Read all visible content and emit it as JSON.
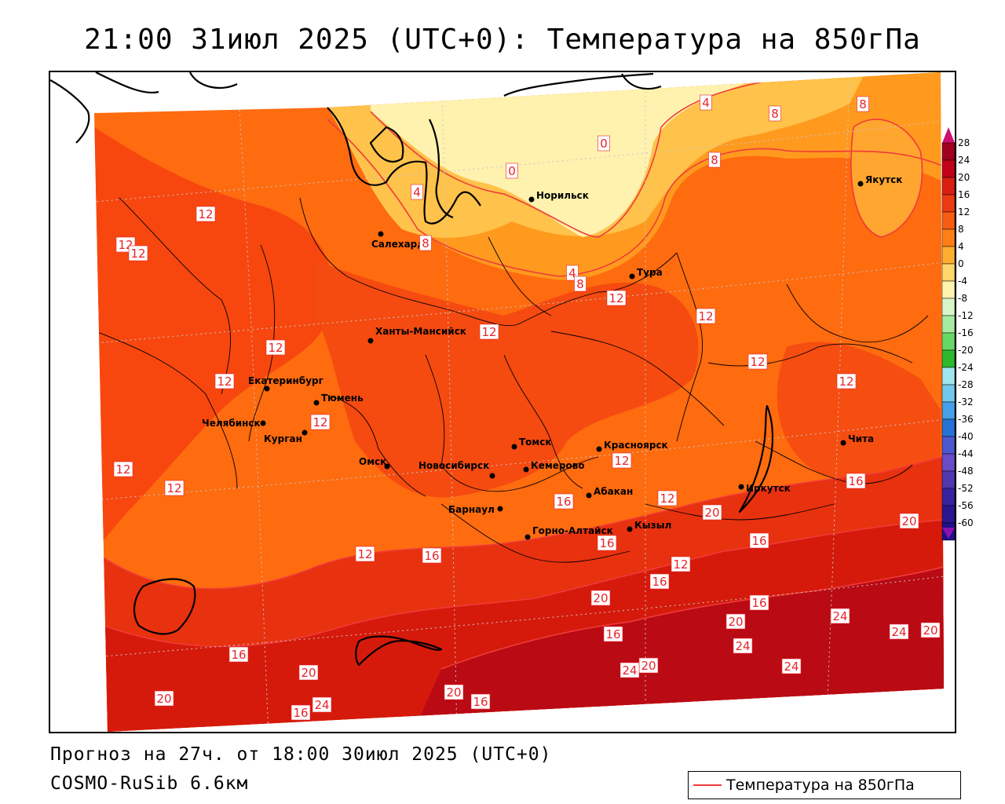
{
  "title": "21:00 31июл 2025 (UTC+0): Температура на 850гПа",
  "forecast_text": "Прогноз на 27ч. от 18:00 30июл 2025 (UTC+0)",
  "model_text": "COSMO-RuSib 6.6км",
  "legend": {
    "label": "Температура на 850гПа",
    "color": "#ef3b3b"
  },
  "colorbar": {
    "ticks": [
      "28",
      "24",
      "20",
      "16",
      "12",
      "8",
      "4",
      "0",
      "-4",
      "-8",
      "-12",
      "-16",
      "-20",
      "-24",
      "-28",
      "-32",
      "-36",
      "-40",
      "-44",
      "-48",
      "-52",
      "-56",
      "-60"
    ],
    "colors": [
      "#a0001e",
      "#c1001a",
      "#d91e10",
      "#ec3a12",
      "#f95c10",
      "#ff7f14",
      "#ffae30",
      "#ffd66a",
      "#fff3b0",
      "#d8f5c8",
      "#a6eca0",
      "#66d866",
      "#2eb82e",
      "#a0e6f0",
      "#70c8ec",
      "#44a0e8",
      "#2672d8",
      "#4b58d0",
      "#6a4cc8",
      "#5038b0",
      "#3822a0",
      "#2a1790",
      "#20108a"
    ],
    "top_color": "#d01070"
  },
  "cities": [
    {
      "name": "Норильск"
    },
    {
      "name": "Салехард"
    },
    {
      "name": "Якутск"
    },
    {
      "name": "Тура"
    },
    {
      "name": "Ханты-Мансийск"
    },
    {
      "name": "Екатеринбург"
    },
    {
      "name": "Тюмень"
    },
    {
      "name": "Челябинск"
    },
    {
      "name": "Курган"
    },
    {
      "name": "Омск"
    },
    {
      "name": "Новосибирск"
    },
    {
      "name": "Томск"
    },
    {
      "name": "Кемерово"
    },
    {
      "name": "Красноярск"
    },
    {
      "name": "Барнаул"
    },
    {
      "name": "Абакан"
    },
    {
      "name": "Горно-Алтайск"
    },
    {
      "name": "Кызыл"
    },
    {
      "name": "Иркутск"
    },
    {
      "name": "Чита"
    }
  ],
  "isotherm_labels": [
    "0",
    "0",
    "4",
    "4",
    "4",
    "8",
    "8",
    "8",
    "8",
    "8",
    "12",
    "12",
    "12",
    "12",
    "12",
    "12",
    "12",
    "12",
    "12",
    "12",
    "12",
    "12",
    "12",
    "12",
    "12",
    "12",
    "12",
    "16",
    "16",
    "16",
    "16",
    "16",
    "16",
    "16",
    "16",
    "16",
    "16",
    "16",
    "20",
    "20",
    "20",
    "20",
    "20",
    "20",
    "20",
    "20",
    "20",
    "24",
    "24",
    "24",
    "24",
    "24",
    "24"
  ]
}
